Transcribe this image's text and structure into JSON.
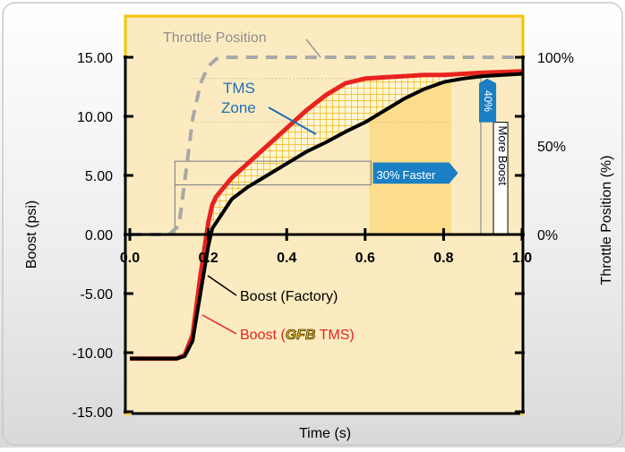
{
  "chart_data": {
    "type": "line",
    "xlabel": "Time (s)",
    "ylabel": "Boost (psi)",
    "y2label": "Throttle Position (%)",
    "xlim": [
      0,
      1.0
    ],
    "ylim": [
      -15,
      15
    ],
    "y2lim": [
      0,
      100
    ],
    "x_ticks": [
      "0.0",
      "0.2",
      "0.4",
      "0.6",
      "0.8",
      "1.0"
    ],
    "y_ticks": [
      "15.00",
      "10.00",
      "5.00",
      "0.00",
      "-5.00",
      "-10.00",
      "-15.00"
    ],
    "y2_ticks": [
      "100%",
      "50%",
      "0%"
    ],
    "series": [
      {
        "name": "Throttle Position",
        "axis": "y2",
        "color": "#a8a8a8",
        "style": "dashed",
        "x": [
          0.0,
          0.1,
          0.125,
          0.14,
          0.16,
          0.18,
          0.2,
          0.22,
          0.24,
          0.26,
          1.0
        ],
        "y": [
          0,
          0,
          5,
          30,
          65,
          85,
          95,
          99,
          100,
          100,
          100
        ]
      },
      {
        "name": "Boost (Factory)",
        "axis": "y1",
        "color": "#000000",
        "x": [
          0.0,
          0.12,
          0.14,
          0.16,
          0.18,
          0.2,
          0.21,
          0.22,
          0.24,
          0.26,
          0.3,
          0.35,
          0.4,
          0.45,
          0.5,
          0.55,
          0.6,
          0.65,
          0.7,
          0.75,
          0.8,
          0.85,
          0.9,
          1.0
        ],
        "y": [
          -10.5,
          -10.5,
          -10.3,
          -9.0,
          -5.0,
          -1.0,
          0.5,
          1.0,
          2.0,
          3.0,
          4.0,
          5.0,
          6.0,
          7.0,
          7.8,
          8.7,
          9.5,
          10.5,
          11.5,
          12.3,
          12.9,
          13.2,
          13.4,
          13.6
        ]
      },
      {
        "name": "Boost (TMS)",
        "axis": "y1",
        "color": "#e8231f",
        "x": [
          0.0,
          0.12,
          0.14,
          0.16,
          0.18,
          0.2,
          0.21,
          0.22,
          0.24,
          0.26,
          0.3,
          0.35,
          0.4,
          0.45,
          0.5,
          0.55,
          0.6,
          0.65,
          0.7,
          0.75,
          0.8,
          0.85,
          0.9,
          1.0
        ],
        "y": [
          -10.5,
          -10.5,
          -10.2,
          -8.5,
          -3.5,
          1.0,
          2.5,
          3.2,
          4.0,
          4.8,
          6.0,
          7.5,
          9.0,
          10.5,
          11.8,
          12.8,
          13.2,
          13.3,
          13.4,
          13.5,
          13.5,
          13.6,
          13.7,
          13.8
        ]
      }
    ],
    "annotations": {
      "throttle_label": "Throttle Position",
      "tms_zone_line1": "TMS",
      "tms_zone_line2": "Zone",
      "faster_pct": "30%",
      "faster_word": "Faster",
      "boost_pct": "40%",
      "boost_words": "More Boost",
      "factory_label": "Boost (Factory)",
      "tms_label_prefix": "Boost (",
      "tms_label_logo": "GFB",
      "tms_label_suffix": " TMS)"
    },
    "colors": {
      "plot_bg": "#fcebc0",
      "plot_border": "#f5c400",
      "highlight": "#fbd87a",
      "hatch_fill": "#f7c21a",
      "badge": "#1a7fc3",
      "tms_red": "#e8231f"
    },
    "grid": false,
    "legend": "none"
  }
}
